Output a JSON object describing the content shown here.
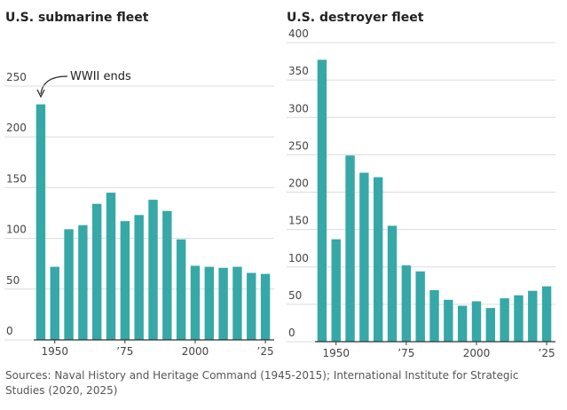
{
  "chart_data": [
    {
      "type": "bar",
      "title": "U.S. submarine fleet",
      "categories": [
        null,
        "1950",
        null,
        null,
        null,
        null,
        "’75",
        null,
        null,
        null,
        null,
        "2000",
        null,
        null,
        null,
        null,
        "’25"
      ],
      "values": [
        232,
        72,
        109,
        113,
        134,
        145,
        117,
        123,
        138,
        127,
        99,
        73,
        72,
        71,
        72,
        66,
        65
      ],
      "color": "#36a8a7",
      "ylim": [
        0,
        250
      ],
      "yticks": [
        0,
        50,
        100,
        150,
        200,
        250
      ],
      "grid": true,
      "annotation": "WWII ends"
    },
    {
      "type": "bar",
      "title": "U.S. destroyer fleet",
      "categories": [
        null,
        "1950",
        null,
        null,
        null,
        null,
        "’75",
        null,
        null,
        null,
        null,
        "2000",
        null,
        null,
        null,
        null,
        "’25"
      ],
      "values": [
        377,
        137,
        249,
        226,
        220,
        155,
        102,
        94,
        69,
        56,
        48,
        54,
        45,
        58,
        62,
        68,
        74
      ],
      "color": "#36a8a7",
      "ylim": [
        0,
        400
      ],
      "yticks": [
        0,
        50,
        100,
        150,
        200,
        250,
        300,
        350,
        400
      ],
      "grid": true
    }
  ],
  "source": "Sources: Naval History and Heritage Command (1945-2015); International Institute for Strategic Studies (2020, 2025)"
}
